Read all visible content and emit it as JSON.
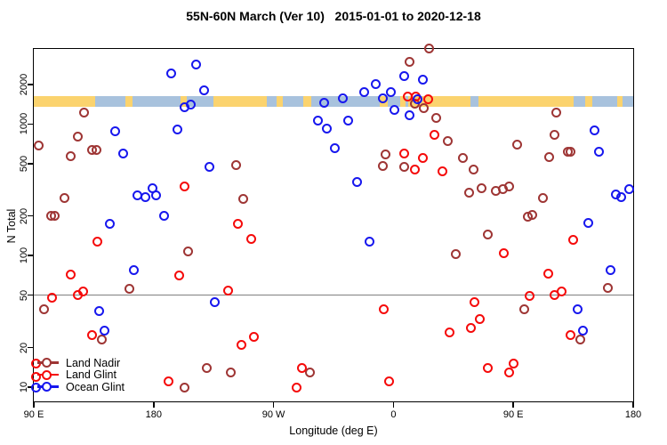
{
  "title": "55N-60N March (Ver 10)   2015-01-01 to 2020-12-18",
  "chart_data": {
    "type": "scatter",
    "title": "55N-60N March (Ver 10)   2015-01-01 to 2020-12-18",
    "xlabel": "Longitude (deg E)",
    "ylabel": "N Total",
    "x_axis": {
      "min": 90,
      "max": 540,
      "note": "longitude axis wraps eastward: 90E to 180 to 90W to 0 to 90E to 180",
      "ticks": [
        {
          "value": 90,
          "label": "90 E"
        },
        {
          "value": 180,
          "label": "180"
        },
        {
          "value": 270,
          "label": "90 W"
        },
        {
          "value": 360,
          "label": "0"
        },
        {
          "value": 450,
          "label": "90 E"
        },
        {
          "value": 540,
          "label": "180"
        }
      ]
    },
    "y_axis": {
      "scale": "log",
      "min": 7.5,
      "max": 3800,
      "ticks": [
        {
          "value": 2000,
          "label": "2000"
        },
        {
          "value": 1000,
          "label": "1000"
        },
        {
          "value": 500,
          "label": "500"
        },
        {
          "value": 200,
          "label": "200"
        },
        {
          "value": 100,
          "label": "100"
        },
        {
          "value": 50,
          "label": "50"
        },
        {
          "value": 20,
          "label": "20"
        },
        {
          "value": 10,
          "label": "10"
        }
      ]
    },
    "grid": false,
    "reference_line": {
      "y": 50,
      "color": "#7f7f7f"
    },
    "map_strip": {
      "n_top": 1630,
      "n_bottom": 1350,
      "land_color": "#FBD36E",
      "ocean_color": "#A8C2DD",
      "segments": [
        {
          "from": 90,
          "to": 136,
          "surface": "land"
        },
        {
          "from": 136,
          "to": 225,
          "surface": "ocean"
        },
        {
          "from": 159,
          "to": 164,
          "surface": "land"
        },
        {
          "from": 200,
          "to": 205,
          "surface": "land"
        },
        {
          "from": 225,
          "to": 265,
          "surface": "land"
        },
        {
          "from": 265,
          "to": 371,
          "surface": "ocean"
        },
        {
          "from": 272,
          "to": 277,
          "surface": "land"
        },
        {
          "from": 292,
          "to": 298,
          "surface": "land"
        },
        {
          "from": 350,
          "to": 356,
          "surface": "land"
        },
        {
          "from": 365,
          "to": 369,
          "surface": "land"
        },
        {
          "from": 371,
          "to": 495,
          "surface": "land"
        },
        {
          "from": 418,
          "to": 424,
          "surface": "ocean"
        },
        {
          "from": 495,
          "to": 540,
          "surface": "ocean"
        },
        {
          "from": 504,
          "to": 509,
          "surface": "land"
        },
        {
          "from": 528,
          "to": 532,
          "surface": "land"
        }
      ]
    },
    "legend": {
      "position": "bottom-left",
      "items": [
        {
          "label": "Land Nadir",
          "color": "#9E3534"
        },
        {
          "label": "Land Glint",
          "color": "#F50A0A"
        },
        {
          "label": "Ocean Glint",
          "color": "#1717EE"
        }
      ]
    },
    "series": [
      {
        "name": "Land Nadir",
        "color": "#9E3534",
        "points": [
          [
            387,
            3750
          ],
          [
            372,
            2990
          ],
          [
            128,
            1230
          ],
          [
            376,
            1420
          ],
          [
            383,
            1330
          ],
          [
            392,
            1120
          ],
          [
            123,
            800
          ],
          [
            94,
            690
          ],
          [
            134,
            640
          ],
          [
            137,
            640
          ],
          [
            118,
            570
          ],
          [
            242,
            490
          ],
          [
            354,
            590
          ],
          [
            352,
            480
          ],
          [
            368,
            470
          ],
          [
            453,
            700
          ],
          [
            401,
            740
          ],
          [
            482,
            1230
          ],
          [
            481,
            830
          ],
          [
            491,
            620
          ],
          [
            493,
            620
          ],
          [
            477,
            560
          ],
          [
            412,
            550
          ],
          [
            420,
            450
          ],
          [
            426,
            325
          ],
          [
            417,
            300
          ],
          [
            437,
            310
          ],
          [
            442,
            320
          ],
          [
            447,
            335
          ],
          [
            472,
            275
          ],
          [
            461,
            198
          ],
          [
            464,
            205
          ],
          [
            113,
            275
          ],
          [
            103,
            200
          ],
          [
            106,
            200
          ],
          [
            247,
            270
          ],
          [
            206,
            108
          ],
          [
            162,
            56
          ],
          [
            98,
            39
          ],
          [
            141,
            23
          ],
          [
            220,
            14
          ],
          [
            238,
            13
          ],
          [
            203,
            10
          ],
          [
            297,
            13
          ],
          [
            431,
            144
          ],
          [
            407,
            103
          ],
          [
            458,
            39
          ],
          [
            500,
            23
          ],
          [
            521,
            57
          ]
        ]
      },
      {
        "name": "Land Glint",
        "color": "#F50A0A",
        "points": [
          [
            371,
            1620
          ],
          [
            377,
            1610
          ],
          [
            386,
            1550
          ],
          [
            391,
            830
          ],
          [
            203,
            335
          ],
          [
            397,
            435
          ],
          [
            368,
            600
          ],
          [
            382,
            550
          ],
          [
            376,
            450
          ],
          [
            243,
            175
          ],
          [
            138,
            128
          ],
          [
            253,
            133
          ],
          [
            118,
            72
          ],
          [
            199,
            71
          ],
          [
            443,
            105
          ],
          [
            495,
            132
          ],
          [
            476,
            73
          ],
          [
            127,
            53
          ],
          [
            123,
            50
          ],
          [
            104,
            48
          ],
          [
            236,
            54
          ],
          [
            353,
            39
          ],
          [
            481,
            50
          ],
          [
            486,
            53
          ],
          [
            462,
            49
          ],
          [
            421,
            44
          ],
          [
            425,
            33
          ],
          [
            418,
            28
          ],
          [
            402,
            26
          ],
          [
            493,
            25
          ],
          [
            134,
            25
          ],
          [
            255,
            24
          ],
          [
            246,
            21
          ],
          [
            291,
            14
          ],
          [
            287,
            10
          ],
          [
            357,
            11
          ],
          [
            431,
            14
          ],
          [
            447,
            13
          ],
          [
            450,
            15
          ],
          [
            191,
            11
          ],
          [
            92,
            15
          ],
          [
            92,
            12
          ]
        ]
      },
      {
        "name": "Ocean Glint",
        "color": "#1717EE",
        "points": [
          [
            212,
            2820
          ],
          [
            193,
            2440
          ],
          [
            218,
            1810
          ],
          [
            203,
            1350
          ],
          [
            208,
            1400
          ],
          [
            368,
            2320
          ],
          [
            382,
            2180
          ],
          [
            347,
            2010
          ],
          [
            338,
            1760
          ],
          [
            358,
            1750
          ],
          [
            352,
            1570
          ],
          [
            378,
            1540
          ],
          [
            308,
            1450
          ],
          [
            322,
            1580
          ],
          [
            361,
            1280
          ],
          [
            372,
            1170
          ],
          [
            303,
            1060
          ],
          [
            326,
            1070
          ],
          [
            310,
            930
          ],
          [
            151,
            880
          ],
          [
            198,
            910
          ],
          [
            316,
            660
          ],
          [
            222,
            470
          ],
          [
            157,
            600
          ],
          [
            511,
            890
          ],
          [
            514,
            620
          ],
          [
            168,
            285
          ],
          [
            174,
            280
          ],
          [
            179,
            325
          ],
          [
            182,
            285
          ],
          [
            188,
            200
          ],
          [
            147,
            175
          ],
          [
            333,
            365
          ],
          [
            342,
            127
          ],
          [
            165,
            77
          ],
          [
            226,
            44
          ],
          [
            139,
            38
          ],
          [
            143,
            27
          ],
          [
            527,
            290
          ],
          [
            531,
            280
          ],
          [
            537,
            320
          ],
          [
            506,
            178
          ],
          [
            523,
            78
          ],
          [
            498,
            39
          ],
          [
            502,
            27
          ],
          [
            92,
            10
          ]
        ]
      }
    ]
  }
}
